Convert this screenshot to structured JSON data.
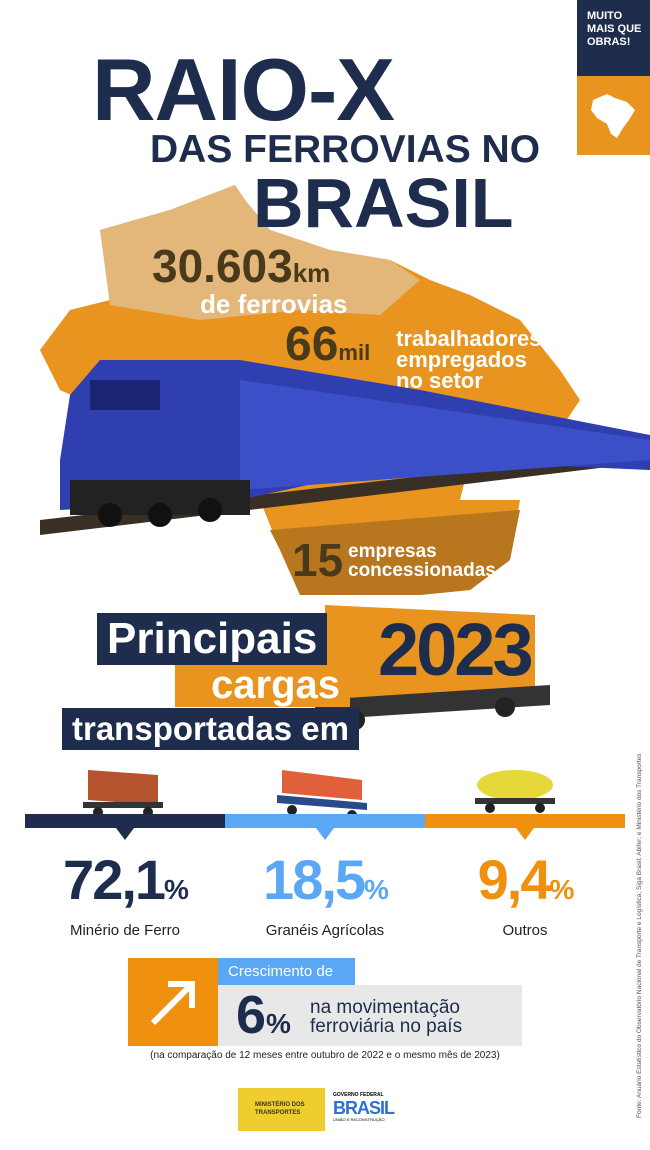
{
  "badge": {
    "text": "MUITO MAIS QUE OBRAS!",
    "icon": "brazil-map-icon"
  },
  "title": {
    "line1": "RAIO-X",
    "line2": "DAS FERROVIAS NO",
    "line3": "BRASIL"
  },
  "stats": {
    "railways_value": "30.603",
    "railways_unit": "km",
    "railways_label": "de ferrovias",
    "workers_value": "66",
    "workers_unit": "mil",
    "workers_label1": "trabalhadores",
    "workers_label2": "empregados",
    "workers_label3": "no setor",
    "companies_value": "15",
    "companies_label1": "empresas",
    "companies_label2": "concessionadas"
  },
  "cargo_heading": {
    "line1": "Principais",
    "line2": "cargas",
    "line3": "transportadas em",
    "year": "2023"
  },
  "cargo": [
    {
      "value": "72,1",
      "unit": "%",
      "label": "Minério de Ferro",
      "color": "#1e2d4d"
    },
    {
      "value": "18,5",
      "unit": "%",
      "label": "Granéis Agrícolas",
      "color": "#5aa7f5"
    },
    {
      "value": "9,4",
      "unit": "%",
      "label": "Outros",
      "color": "#f0900f"
    }
  ],
  "growth": {
    "label": "Crescimento de",
    "value": "6",
    "unit": "%",
    "text1": "na movimentação",
    "text2": "ferroviária no país",
    "note": "(na comparação de 12 meses entre outubro de 2022 e o mesmo mês de 2023)"
  },
  "logos": {
    "ministry": "MINISTÉRIO DOS TRANSPORTES",
    "gov_top": "GOVERNO FEDERAL",
    "gov_main": "BRASIL",
    "gov_bottom": "UNIÃO E RECONSTRUÇÃO"
  },
  "source": "Fonte: Anuário Estatístico do Observatório Nacional de Transporte e Logística; Siga Brasil; Abifer; e Ministério dos Transportes"
}
